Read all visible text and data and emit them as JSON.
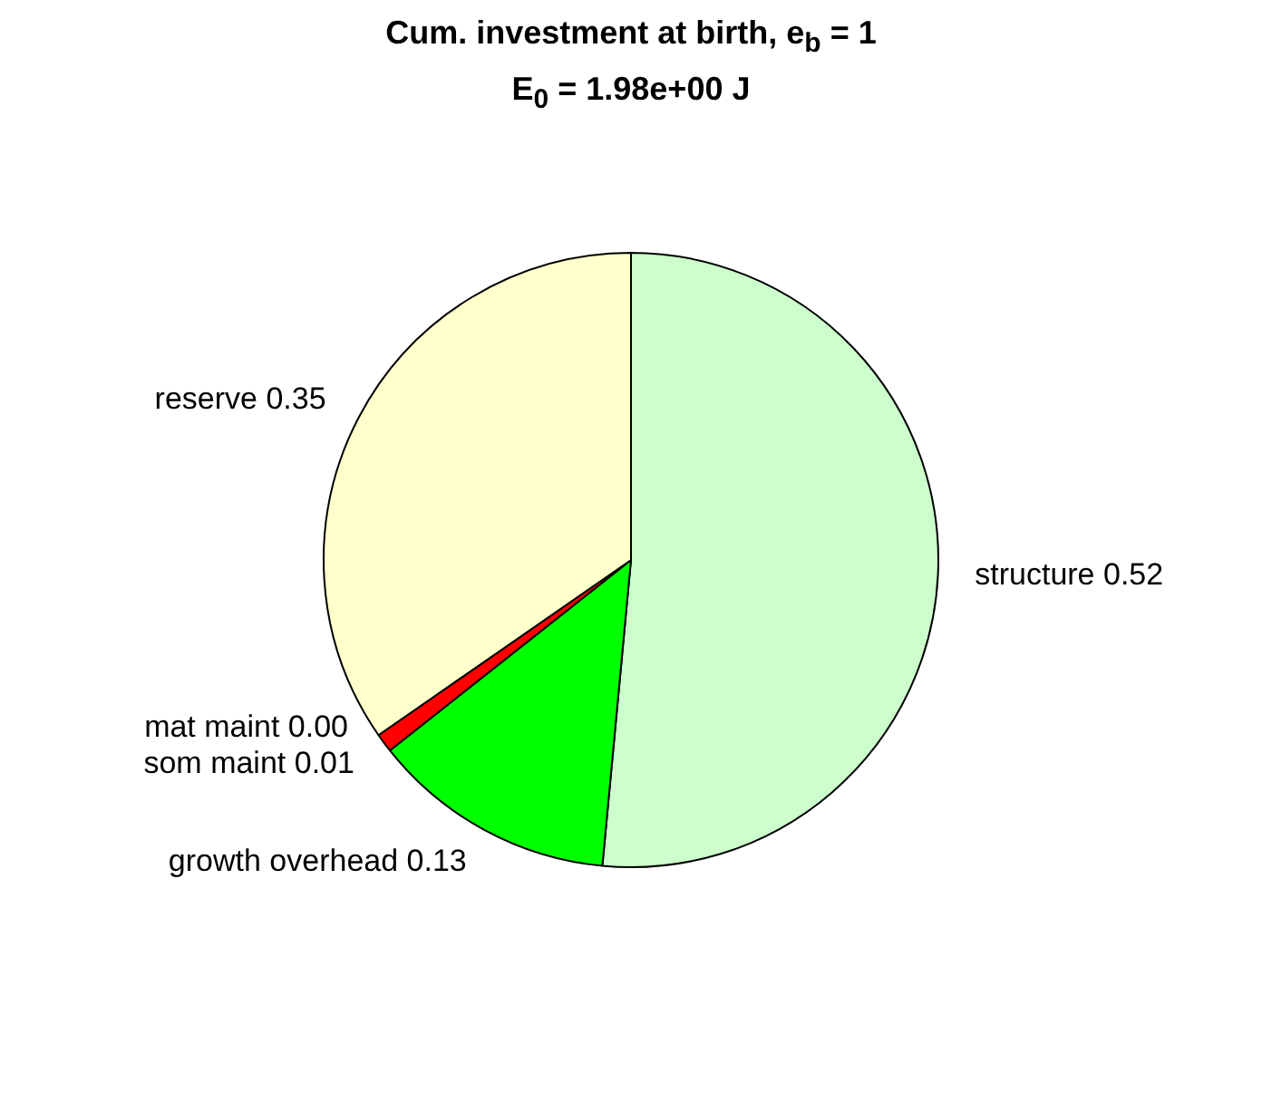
{
  "chart_data": {
    "type": "pie",
    "title": "Cum. investment at birth, e$_{b}$ = 1",
    "subtitle": "E$_{0}$ = 1.98e+00 J",
    "categories": [
      "structure",
      "growth overhead",
      "som maint",
      "mat maint",
      "reserve"
    ],
    "values": [
      0.52,
      0.13,
      0.01,
      0.0,
      0.35
    ],
    "value_labels": [
      "0.52",
      "0.13",
      "0.01",
      "0.00",
      "0.35"
    ],
    "colors": [
      "#ccffcc",
      "#00ff00",
      "#ff0000",
      "#ff0000",
      "#ffffcc"
    ],
    "legend": false
  }
}
